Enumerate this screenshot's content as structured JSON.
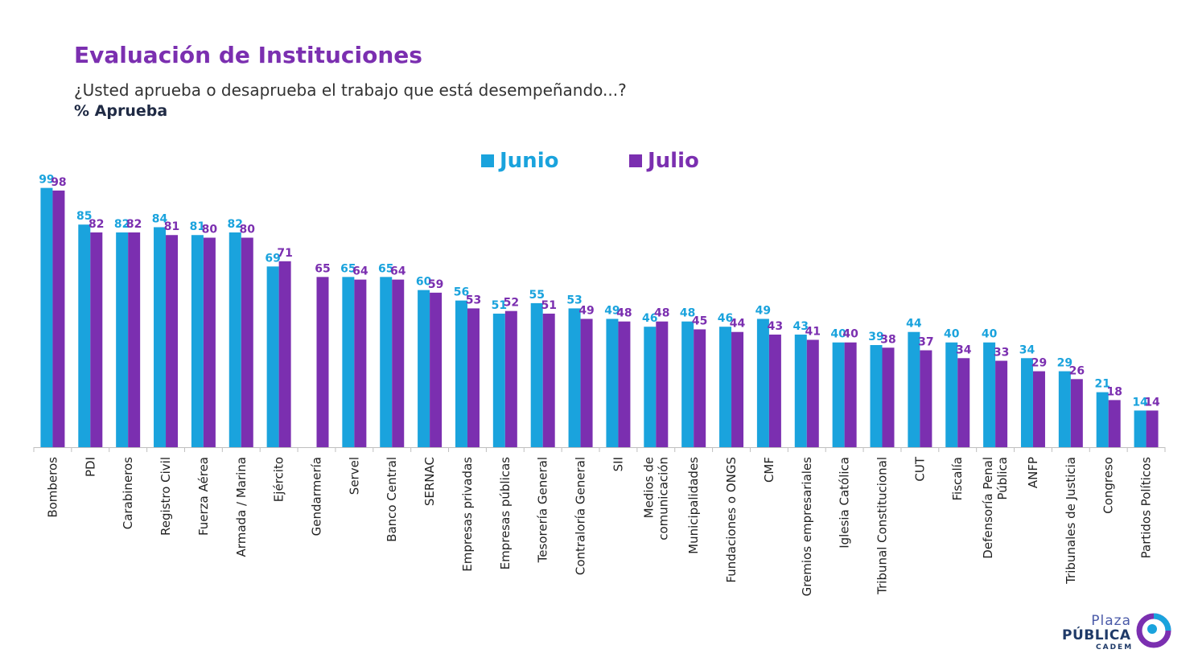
{
  "header": {
    "title": "Evaluación de Instituciones",
    "question": "¿Usted aprueba o desaprueba el trabajo que está desempeñando...?",
    "measure": "% Aprueba"
  },
  "legend": {
    "junio": "Junio",
    "julio": "Julio"
  },
  "logo": {
    "line1": "Plaza",
    "line2": "PÚBLICA",
    "line3": "CADEM"
  },
  "colors": {
    "junio": "#1aa3dd",
    "julio": "#7b2fb0",
    "title": "#7b2fb0"
  },
  "chart_data": {
    "type": "bar",
    "categories": [
      [
        "Bomberos"
      ],
      [
        "PDI"
      ],
      [
        "Carabineros"
      ],
      [
        "Registro Civil"
      ],
      [
        "Fuerza Aérea"
      ],
      [
        "Armada / Marina"
      ],
      [
        "Ejército"
      ],
      [
        "Gendarmería"
      ],
      [
        "Servel"
      ],
      [
        "Banco Central"
      ],
      [
        "SERNAC"
      ],
      [
        "Empresas privadas"
      ],
      [
        "Empresas públicas"
      ],
      [
        "Tesorería General"
      ],
      [
        "Contraloría General"
      ],
      [
        "SII"
      ],
      [
        "Medios de",
        "comunicación"
      ],
      [
        "Municipalidades"
      ],
      [
        "Fundaciones o ONGS"
      ],
      [
        "CMF"
      ],
      [
        "Gremios empresariales"
      ],
      [
        "Iglesia Católica"
      ],
      [
        "Tribunal Constitucional"
      ],
      [
        "CUT"
      ],
      [
        "Fiscalía"
      ],
      [
        "Defensoría Penal",
        "Pública"
      ],
      [
        "ANFP"
      ],
      [
        "Tribunales de Justicia"
      ],
      [
        "Congreso"
      ],
      [
        "Partidos Políticos"
      ]
    ],
    "series": [
      {
        "name": "Junio",
        "values": [
          99,
          85,
          82,
          84,
          81,
          82,
          69,
          null,
          65,
          65,
          60,
          56,
          51,
          55,
          53,
          49,
          46,
          48,
          46,
          49,
          43,
          40,
          39,
          44,
          40,
          40,
          34,
          29,
          21,
          14
        ]
      },
      {
        "name": "Julio",
        "values": [
          98,
          82,
          82,
          81,
          80,
          80,
          71,
          65,
          64,
          64,
          59,
          53,
          52,
          51,
          49,
          48,
          48,
          45,
          44,
          43,
          41,
          40,
          38,
          37,
          34,
          33,
          29,
          26,
          18,
          14
        ]
      }
    ],
    "ylim": [
      0,
      100
    ],
    "grid": false,
    "legend_position": "top-center"
  }
}
